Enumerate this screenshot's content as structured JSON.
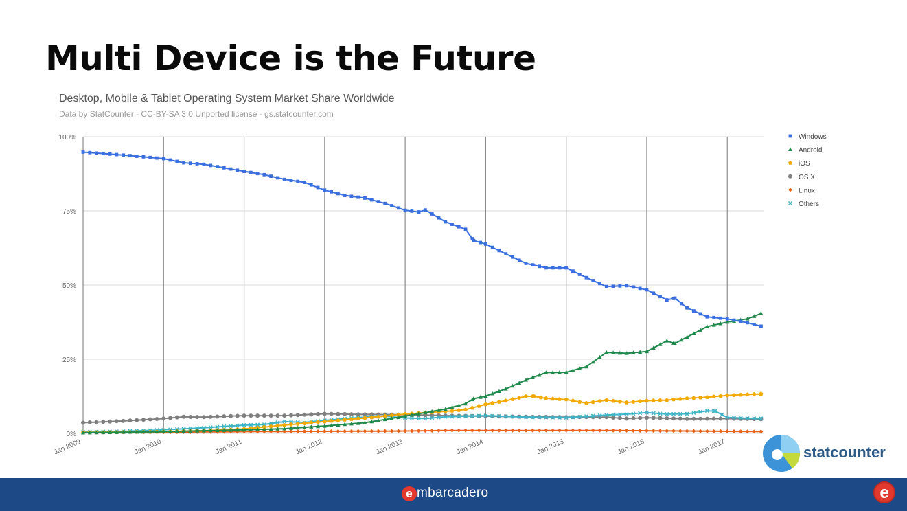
{
  "slide": {
    "title": "Multi Device is the Future",
    "footer_brand": "mbarcadero",
    "footer_brand_mark": "e",
    "footer_corner_mark": "e",
    "logo_text": "statcounter",
    "colors": {
      "footer": "#1d4a86",
      "brand_red": "#e2382e"
    }
  },
  "chart_data": {
    "type": "line",
    "title": "Desktop, Mobile & Tablet Operating System Market Share Worldwide",
    "subtitle": "Data by StatCounter - CC-BY-SA 3.0 Unported license - gs.statcounter.com",
    "ylim": [
      0,
      100
    ],
    "yticks": [
      {
        "value": 0,
        "label": "0%"
      },
      {
        "value": 25,
        "label": "25%"
      },
      {
        "value": 50,
        "label": "50%"
      },
      {
        "value": 75,
        "label": "75%"
      },
      {
        "value": 100,
        "label": "100%"
      }
    ],
    "xlim": [
      2009.0,
      2017.45
    ],
    "xticks": [
      {
        "value": 2009,
        "label": "Jan 2009"
      },
      {
        "value": 2010,
        "label": "Jan 2010"
      },
      {
        "value": 2011,
        "label": "Jan 2011"
      },
      {
        "value": 2012,
        "label": "Jan 2012"
      },
      {
        "value": 2013,
        "label": "Jan 2013"
      },
      {
        "value": 2014,
        "label": "Jan 2014"
      },
      {
        "value": 2015,
        "label": "Jan 2015"
      },
      {
        "value": 2016,
        "label": "Jan 2016"
      },
      {
        "value": 2017,
        "label": "Jan 2017"
      }
    ],
    "grid": true,
    "legend_position": "right",
    "series": [
      {
        "name": "Windows",
        "color": "#3a6fe0",
        "marker": "square",
        "points": [
          [
            2009.0,
            94.8
          ],
          [
            2009.5,
            93.8
          ],
          [
            2010.0,
            92.6
          ],
          [
            2010.25,
            91.2
          ],
          [
            2010.5,
            90.7
          ],
          [
            2011.0,
            88.3
          ],
          [
            2011.25,
            87.2
          ],
          [
            2011.5,
            85.6
          ],
          [
            2011.75,
            84.6
          ],
          [
            2012.0,
            82.0
          ],
          [
            2012.25,
            80.2
          ],
          [
            2012.5,
            79.3
          ],
          [
            2012.75,
            77.5
          ],
          [
            2013.0,
            75.2
          ],
          [
            2013.17,
            74.6
          ],
          [
            2013.25,
            75.3
          ],
          [
            2013.5,
            71.3
          ],
          [
            2013.75,
            68.8
          ],
          [
            2013.85,
            65.0
          ],
          [
            2014.0,
            63.8
          ],
          [
            2014.25,
            60.5
          ],
          [
            2014.5,
            57.3
          ],
          [
            2014.75,
            55.8
          ],
          [
            2015.0,
            55.8
          ],
          [
            2015.25,
            52.5
          ],
          [
            2015.5,
            49.5
          ],
          [
            2015.75,
            49.8
          ],
          [
            2016.0,
            48.4
          ],
          [
            2016.25,
            45.0
          ],
          [
            2016.35,
            45.6
          ],
          [
            2016.5,
            42.3
          ],
          [
            2016.75,
            39.3
          ],
          [
            2017.0,
            38.6
          ],
          [
            2017.25,
            37.3
          ],
          [
            2017.42,
            36.1
          ]
        ]
      },
      {
        "name": "Android",
        "color": "#1f8a4c",
        "marker": "triangle",
        "points": [
          [
            2009.0,
            0.2
          ],
          [
            2010.0,
            0.6
          ],
          [
            2011.0,
            1.2
          ],
          [
            2011.5,
            1.6
          ],
          [
            2012.0,
            2.5
          ],
          [
            2012.5,
            3.6
          ],
          [
            2013.0,
            5.8
          ],
          [
            2013.25,
            7.0
          ],
          [
            2013.5,
            8.2
          ],
          [
            2013.75,
            10.0
          ],
          [
            2013.85,
            11.7
          ],
          [
            2014.0,
            12.6
          ],
          [
            2014.25,
            15.0
          ],
          [
            2014.5,
            18.0
          ],
          [
            2014.75,
            20.5
          ],
          [
            2015.0,
            20.6
          ],
          [
            2015.25,
            22.5
          ],
          [
            2015.5,
            27.3
          ],
          [
            2015.75,
            27.0
          ],
          [
            2016.0,
            27.6
          ],
          [
            2016.25,
            31.2
          ],
          [
            2016.35,
            30.3
          ],
          [
            2016.5,
            32.5
          ],
          [
            2016.75,
            36.0
          ],
          [
            2017.0,
            37.5
          ],
          [
            2017.25,
            38.6
          ],
          [
            2017.42,
            40.4
          ]
        ]
      },
      {
        "name": "iOS",
        "color": "#f2a900",
        "marker": "pentagon",
        "points": [
          [
            2009.0,
            0.3
          ],
          [
            2010.0,
            0.6
          ],
          [
            2010.5,
            0.9
          ],
          [
            2011.0,
            1.5
          ],
          [
            2011.5,
            2.8
          ],
          [
            2012.0,
            4.0
          ],
          [
            2012.5,
            5.2
          ],
          [
            2013.0,
            6.5
          ],
          [
            2013.25,
            7.0
          ],
          [
            2013.5,
            7.4
          ],
          [
            2013.75,
            8.0
          ],
          [
            2014.0,
            9.8
          ],
          [
            2014.25,
            11.0
          ],
          [
            2014.5,
            12.5
          ],
          [
            2014.6,
            12.5
          ],
          [
            2014.75,
            11.8
          ],
          [
            2015.0,
            11.4
          ],
          [
            2015.25,
            10.2
          ],
          [
            2015.5,
            11.2
          ],
          [
            2015.75,
            10.4
          ],
          [
            2016.0,
            11.0
          ],
          [
            2016.25,
            11.2
          ],
          [
            2016.5,
            11.8
          ],
          [
            2016.75,
            12.2
          ],
          [
            2017.0,
            12.8
          ],
          [
            2017.25,
            13.1
          ],
          [
            2017.42,
            13.3
          ]
        ]
      },
      {
        "name": "OS X",
        "color": "#7f7f7f",
        "marker": "circle",
        "points": [
          [
            2009.0,
            3.6
          ],
          [
            2009.5,
            4.2
          ],
          [
            2010.0,
            5.0
          ],
          [
            2010.25,
            5.6
          ],
          [
            2010.5,
            5.5
          ],
          [
            2011.0,
            6.0
          ],
          [
            2011.5,
            6.0
          ],
          [
            2011.75,
            6.3
          ],
          [
            2012.0,
            6.6
          ],
          [
            2012.5,
            6.4
          ],
          [
            2013.0,
            6.3
          ],
          [
            2013.5,
            6.0
          ],
          [
            2014.0,
            5.8
          ],
          [
            2014.5,
            5.6
          ],
          [
            2015.0,
            5.5
          ],
          [
            2015.5,
            5.5
          ],
          [
            2015.75,
            5.0
          ],
          [
            2016.0,
            5.3
          ],
          [
            2016.5,
            4.9
          ],
          [
            2017.0,
            5.0
          ],
          [
            2017.42,
            4.8
          ]
        ]
      },
      {
        "name": "Linux",
        "color": "#e8641b",
        "marker": "diamond",
        "points": [
          [
            2009.0,
            0.3
          ],
          [
            2010.0,
            0.4
          ],
          [
            2011.0,
            0.6
          ],
          [
            2012.0,
            0.7
          ],
          [
            2013.0,
            0.8
          ],
          [
            2013.5,
            1.0
          ],
          [
            2014.0,
            1.0
          ],
          [
            2015.0,
            1.0
          ],
          [
            2015.5,
            1.0
          ],
          [
            2016.0,
            0.9
          ],
          [
            2017.0,
            0.7
          ],
          [
            2017.42,
            0.6
          ]
        ]
      },
      {
        "name": "Others",
        "color": "#3eb4c8",
        "marker": "cross",
        "points": [
          [
            2009.0,
            0.5
          ],
          [
            2009.5,
            0.7
          ],
          [
            2010.0,
            1.2
          ],
          [
            2010.5,
            1.9
          ],
          [
            2011.0,
            2.8
          ],
          [
            2011.25,
            3.0
          ],
          [
            2011.5,
            4.0
          ],
          [
            2011.75,
            3.7
          ],
          [
            2012.0,
            4.4
          ],
          [
            2012.5,
            5.5
          ],
          [
            2012.75,
            5.8
          ],
          [
            2013.0,
            5.2
          ],
          [
            2013.25,
            5.0
          ],
          [
            2013.5,
            5.6
          ],
          [
            2013.75,
            5.8
          ],
          [
            2014.0,
            6.0
          ],
          [
            2014.5,
            5.5
          ],
          [
            2015.0,
            5.3
          ],
          [
            2015.5,
            6.2
          ],
          [
            2015.75,
            6.5
          ],
          [
            2016.0,
            7.0
          ],
          [
            2016.25,
            6.5
          ],
          [
            2016.5,
            6.6
          ],
          [
            2016.75,
            7.6
          ],
          [
            2016.85,
            7.5
          ],
          [
            2017.0,
            5.4
          ],
          [
            2017.25,
            5.1
          ],
          [
            2017.42,
            5.0
          ]
        ]
      }
    ]
  }
}
